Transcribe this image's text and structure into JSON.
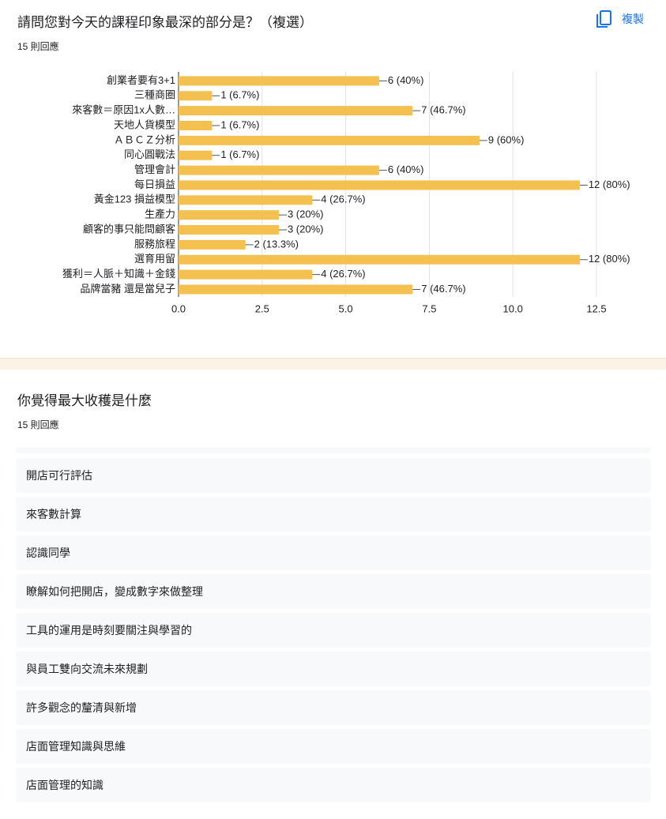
{
  "question1": {
    "title": "請問您對今天的課程印象最深的部分是？（複選）",
    "response_count": "15 則回應",
    "copy_label": "複製"
  },
  "chart_data": {
    "type": "bar",
    "orientation": "horizontal",
    "color": "#f4c150",
    "grid": true,
    "categories": [
      "創業者要有3+1",
      "三種商圈",
      "來客數＝原因1x人數…",
      "天地人貨模型",
      "ＡＢＣＺ分析",
      "同心圓戰法",
      "管理會計",
      "每日損益",
      "黃金123 損益模型",
      "生產力",
      "顧客的事只能問顧客",
      "服務旅程",
      "選育用留",
      "獲利＝人脈＋知識＋金錢",
      "品牌當豬 還是當兒子"
    ],
    "values": [
      6,
      1,
      7,
      1,
      9,
      1,
      6,
      12,
      4,
      3,
      3,
      2,
      12,
      4,
      7
    ],
    "value_labels": [
      "6 (40%)",
      "1 (6.7%)",
      "7 (46.7%)",
      "1 (6.7%)",
      "9 (60%)",
      "1 (6.7%)",
      "6 (40%)",
      "12 (80%)",
      "4 (26.7%)",
      "3 (20%)",
      "3 (20%)",
      "2 (13.3%)",
      "12 (80%)",
      "4 (26.7%)",
      "7 (46.7%)"
    ],
    "xlim": [
      0,
      12.5
    ],
    "xticks": [
      {
        "value": 0,
        "label": "0.0"
      },
      2.5,
      {
        "value": 5,
        "label": "5.0"
      },
      7.5,
      {
        "value": 10,
        "label": "10.0"
      },
      12.5
    ]
  },
  "question2": {
    "title": "你覺得最大收穫是什麼",
    "response_count": "15 則回應",
    "answers": [
      "開店可行評估",
      "來客數計算",
      "認識同學",
      "瞭解如何把開店，變成數字來做整理",
      "工具的運用是時刻要關注與學習的",
      "與員工雙向交流未來規劃",
      "許多觀念的釐清與新增",
      "店面管理知識與思維",
      "店面管理的知識"
    ]
  }
}
